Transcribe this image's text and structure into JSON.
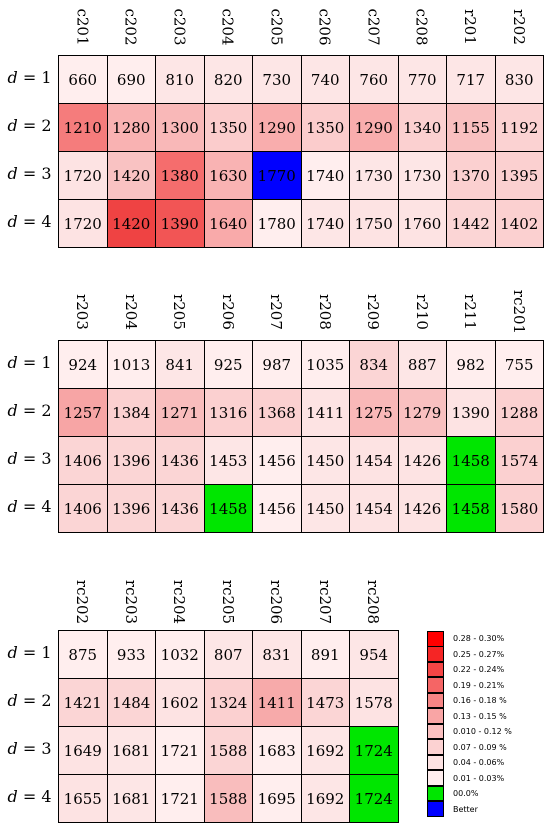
{
  "chart_data": [
    {
      "type": "heatmap",
      "columns": [
        "c201",
        "c202",
        "c203",
        "c204",
        "c205",
        "c206",
        "c207",
        "c208",
        "r201",
        "r202"
      ],
      "rows": [
        {
          "label_var": "d",
          "label_num": "1",
          "values": [
            660,
            690,
            810,
            820,
            730,
            740,
            760,
            770,
            717,
            830
          ],
          "colors": [
            "#ffeeee",
            "#ffeeee",
            "#fde6e6",
            "#fde6e6",
            "#fde6e6",
            "#fde6e6",
            "#fde6e6",
            "#fde6e6",
            "#fde6e6",
            "#fde6e6"
          ]
        },
        {
          "label_var": "d",
          "label_num": "2",
          "values": [
            1210,
            1280,
            1300,
            1350,
            1290,
            1350,
            1290,
            1340,
            1155,
            1192
          ],
          "colors": [
            "#f57c7c",
            "#f9b2b2",
            "#f9b8b8",
            "#fbcccc",
            "#f9adad",
            "#fbcccc",
            "#f9adad",
            "#fbd0d0",
            "#f9c0c0",
            "#fbd2d2"
          ]
        },
        {
          "label_var": "d",
          "label_num": "3",
          "values": [
            1720,
            1420,
            1380,
            1630,
            1770,
            1740,
            1730,
            1730,
            1370,
            1395
          ],
          "colors": [
            "#fde3e3",
            "#f9c2c2",
            "#f56d6d",
            "#f9b3b3",
            "#0000ff",
            "#ffeeee",
            "#fde6e6",
            "#fde6e6",
            "#fbd0d0",
            "#fbd0d0"
          ]
        },
        {
          "label_var": "d",
          "label_num": "4",
          "values": [
            1720,
            1420,
            1390,
            1640,
            1780,
            1740,
            1750,
            1760,
            1442,
            1402
          ],
          "colors": [
            "#fde3e3",
            "#ef4343",
            "#f25555",
            "#f9aaaa",
            "#ffeeee",
            "#fde6e6",
            "#fde3e3",
            "#fde3e3",
            "#fbd5d5",
            "#fbd0d0"
          ]
        }
      ]
    },
    {
      "type": "heatmap",
      "columns": [
        "r203",
        "r204",
        "r205",
        "r206",
        "r207",
        "r208",
        "r209",
        "r210",
        "r211",
        "rc201"
      ],
      "rows": [
        {
          "label_var": "d",
          "label_num": "1",
          "values": [
            924,
            1013,
            841,
            925,
            987,
            1035,
            834,
            887,
            982,
            755
          ],
          "colors": [
            "#ffeeee",
            "#ffeeee",
            "#fde6e6",
            "#ffeeee",
            "#ffeeee",
            "#ffeeee",
            "#fbd5d5",
            "#fde6e6",
            "#ffeeee",
            "#ffeeee"
          ]
        },
        {
          "label_var": "d",
          "label_num": "2",
          "values": [
            1257,
            1384,
            1271,
            1316,
            1368,
            1411,
            1275,
            1279,
            1390,
            1288
          ],
          "colors": [
            "#f7a5a5",
            "#fbd0d0",
            "#f9bdbd",
            "#fbd0d0",
            "#fbd0d0",
            "#fde3e3",
            "#f9b8b8",
            "#f9c0c0",
            "#fde3e3",
            "#fbd0d0"
          ]
        },
        {
          "label_var": "d",
          "label_num": "3",
          "values": [
            1406,
            1396,
            1436,
            1453,
            1456,
            1450,
            1454,
            1426,
            1458,
            1574
          ],
          "colors": [
            "#fbd5d5",
            "#fbd5d5",
            "#fbd5d5",
            "#fde6e6",
            "#ffeeee",
            "#fde6e6",
            "#fde3e3",
            "#fde3e3",
            "#00e600",
            "#fbd0d0"
          ]
        },
        {
          "label_var": "d",
          "label_num": "4",
          "values": [
            1406,
            1396,
            1436,
            1458,
            1456,
            1450,
            1454,
            1426,
            1458,
            1580
          ],
          "colors": [
            "#fbd5d5",
            "#fbd5d5",
            "#fbd5d5",
            "#00e600",
            "#ffeeee",
            "#fde6e6",
            "#fde3e3",
            "#fde3e3",
            "#00e600",
            "#fbd0d0"
          ]
        }
      ]
    },
    {
      "type": "heatmap",
      "columns": [
        "rc202",
        "rc203",
        "rc204",
        "rc205",
        "rc206",
        "rc207",
        "rc208"
      ],
      "rows": [
        {
          "label_var": "d",
          "label_num": "1",
          "values": [
            875,
            933,
            1032,
            807,
            831,
            891,
            954
          ],
          "colors": [
            "#ffeeee",
            "#ffeeee",
            "#ffeeee",
            "#fde6e6",
            "#fde6e6",
            "#ffeeee",
            "#fde6e6"
          ]
        },
        {
          "label_var": "d",
          "label_num": "2",
          "values": [
            1421,
            1484,
            1602,
            1324,
            1411,
            1473,
            1578
          ],
          "colors": [
            "#fbd5d5",
            "#fbd5d5",
            "#fde3e3",
            "#fbd0d0",
            "#f7aaaa",
            "#fbd5d5",
            "#fde3e3"
          ]
        },
        {
          "label_var": "d",
          "label_num": "3",
          "values": [
            1649,
            1681,
            1721,
            1588,
            1683,
            1692,
            1724
          ],
          "colors": [
            "#fde3e3",
            "#fde6e6",
            "#ffeeee",
            "#fbd5d5",
            "#ffeeee",
            "#fde6e6",
            "#00e600"
          ]
        },
        {
          "label_var": "d",
          "label_num": "4",
          "values": [
            1655,
            1681,
            1721,
            1588,
            1695,
            1692,
            1724
          ],
          "colors": [
            "#fde3e3",
            "#fde6e6",
            "#ffeeee",
            "#f9bdbd",
            "#ffeeee",
            "#fde6e6",
            "#00e600"
          ]
        }
      ]
    }
  ],
  "legend": [
    {
      "label": "0.28 - 0.30%",
      "color": "#ff0000"
    },
    {
      "label": "0.25 - 0.27%",
      "color": "#f52525"
    },
    {
      "label": "0.22 - 0.24%",
      "color": "#f54545"
    },
    {
      "label": "0.19 - 0.21%",
      "color": "#f56565"
    },
    {
      "label": "0.16 - 0.18 %",
      "color": "#f78585"
    },
    {
      "label": "0.13 - 0.15 %",
      "color": "#f9a5a5"
    },
    {
      "label": "0.010 - 0.12 %",
      "color": "#fbc0c0"
    },
    {
      "label": "0.07 - 0.09 %",
      "color": "#fcd2d2"
    },
    {
      "label": "0.04 - 0.06%",
      "color": "#fde3e3"
    },
    {
      "label": "0.01 - 0.03%",
      "color": "#ffeeee"
    },
    {
      "label": "00.0%",
      "color": "#00e600"
    },
    {
      "label": "Better",
      "color": "#0000ff"
    }
  ]
}
